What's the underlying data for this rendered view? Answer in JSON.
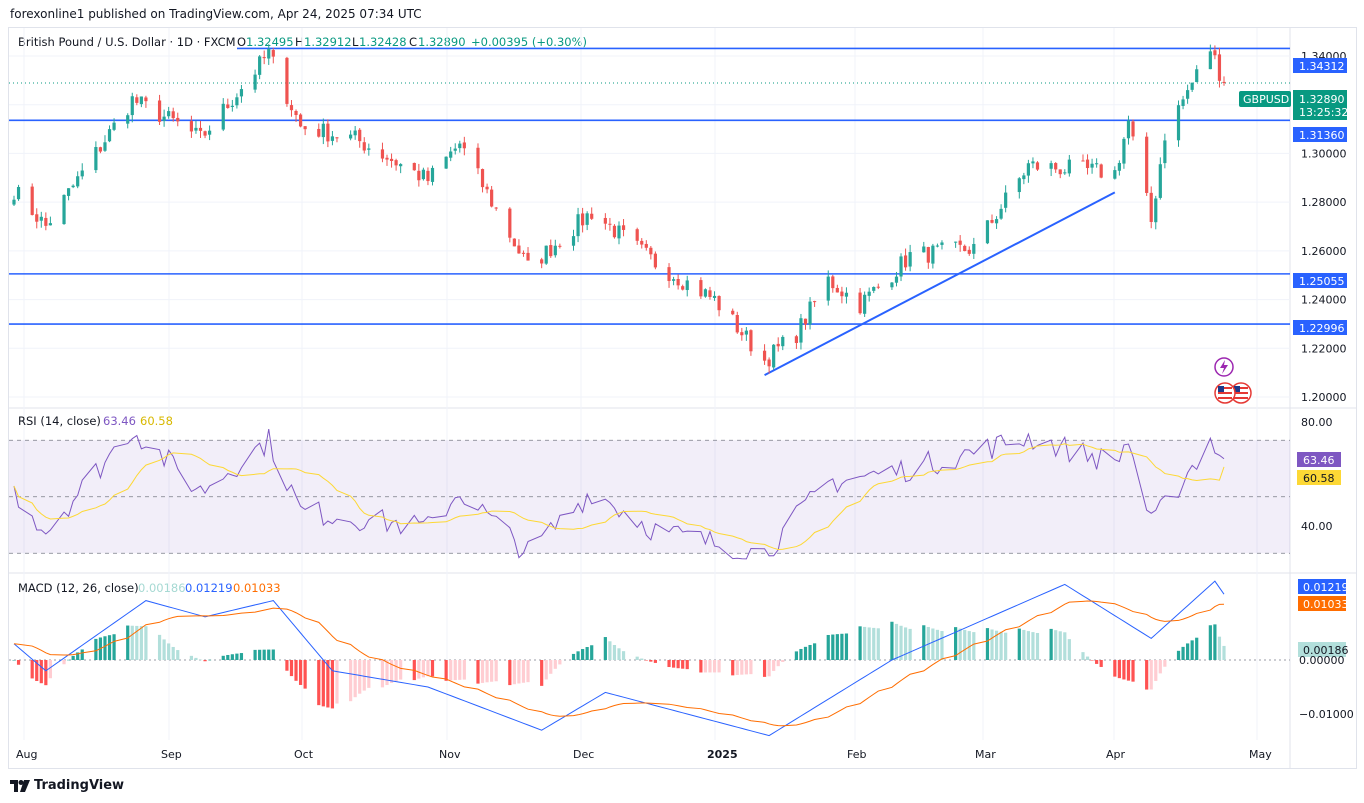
{
  "header": {
    "publish_line": "forexonline1 published on TradingView.com, Apr 24, 2025 07:34 UTC"
  },
  "legend": {
    "symbol": "British Pound / U.S. Dollar · 1D · FXCM",
    "o_label": "O",
    "o_value": "1.32495",
    "h_label": "H",
    "h_value": "1.32912",
    "l_label": "L",
    "l_value": "1.32428",
    "c_label": "C",
    "c_value": "1.32890",
    "change": "+0.00395 (+0.30%)"
  },
  "price_axis": {
    "ticks": [
      "1.34000",
      "1.32000",
      "1.30000",
      "1.28000",
      "1.26000",
      "1.24000",
      "1.22000",
      "1.20000"
    ],
    "symbol_tag": "GBPUSD",
    "last_price": "1.32890",
    "countdown": "13:25:32",
    "levels": [
      "1.34312",
      "1.31360",
      "1.25055",
      "1.22996"
    ]
  },
  "rsi": {
    "label": "RSI (14, close)",
    "value1": "63.46",
    "value2": "60.58",
    "axis_top": "80.00",
    "axis_mid": "40.00"
  },
  "macd": {
    "label": "MACD (12, 26, close)",
    "hist": "0.00186",
    "macd": "0.01219",
    "signal": "0.01033",
    "axis": [
      "0.00000",
      "−0.01000"
    ]
  },
  "time_axis": [
    "Aug",
    "Sep",
    "Oct",
    "Nov",
    "Dec",
    "2025",
    "Feb",
    "Mar",
    "Apr",
    "May"
  ],
  "footer": {
    "brand": "TradingView"
  },
  "colors": {
    "up": "#26a69a",
    "down": "#ef5350",
    "level": "#2962ff",
    "rsi": "#7e57c2",
    "rsi_ma": "#fdd835",
    "macd": "#2962ff",
    "signal": "#ff6d00"
  },
  "chart_data": {
    "type": "candlestick",
    "title": "British Pound / U.S. Dollar · 1D · FXCM",
    "x_range": [
      "2024-08-01",
      "2025-04-24"
    ],
    "y_range": [
      1.195,
      1.347
    ],
    "anchors": [
      {
        "date": "2024-08-01",
        "close": 1.285
      },
      {
        "date": "2024-08-08",
        "close": 1.27
      },
      {
        "date": "2024-08-27",
        "close": 1.322
      },
      {
        "date": "2024-09-06",
        "close": 1.312
      },
      {
        "date": "2024-09-11",
        "close": 1.306
      },
      {
        "date": "2024-09-26",
        "close": 1.341
      },
      {
        "date": "2024-10-03",
        "close": 1.311
      },
      {
        "date": "2024-10-15",
        "close": 1.306
      },
      {
        "date": "2024-10-31",
        "close": 1.289
      },
      {
        "date": "2024-11-07",
        "close": 1.304
      },
      {
        "date": "2024-11-22",
        "close": 1.253
      },
      {
        "date": "2024-12-06",
        "close": 1.276
      },
      {
        "date": "2024-12-20",
        "close": 1.255
      },
      {
        "date": "2025-01-02",
        "close": 1.24
      },
      {
        "date": "2025-01-13",
        "close": 1.215
      },
      {
        "date": "2025-01-20",
        "close": 1.226
      },
      {
        "date": "2025-01-27",
        "close": 1.248
      },
      {
        "date": "2025-02-03",
        "close": 1.238
      },
      {
        "date": "2025-02-14",
        "close": 1.258
      },
      {
        "date": "2025-02-28",
        "close": 1.261
      },
      {
        "date": "2025-03-12",
        "close": 1.295
      },
      {
        "date": "2025-03-31",
        "close": 1.292
      },
      {
        "date": "2025-04-03",
        "close": 1.313
      },
      {
        "date": "2025-04-08",
        "close": 1.272
      },
      {
        "date": "2025-04-11",
        "close": 1.308
      },
      {
        "date": "2025-04-21",
        "close": 1.343
      },
      {
        "date": "2025-04-24",
        "close": 1.3289
      }
    ],
    "horizontal_levels": [
      1.34312,
      1.3136,
      1.25055,
      1.22996
    ],
    "trendline": {
      "from": {
        "date": "2025-01-13",
        "price": 1.209
      },
      "to": {
        "date": "2025-03-31",
        "price": 1.284
      }
    },
    "rsi": {
      "period": 14,
      "last": 63.46,
      "ma_last": 60.58,
      "bands": [
        70,
        50,
        30
      ],
      "anchors": [
        {
          "date": "2024-08-01",
          "v": 52
        },
        {
          "date": "2024-08-08",
          "v": 38
        },
        {
          "date": "2024-08-27",
          "v": 74
        },
        {
          "date": "2024-09-11",
          "v": 52
        },
        {
          "date": "2024-09-26",
          "v": 70
        },
        {
          "date": "2024-10-03",
          "v": 45
        },
        {
          "date": "2024-10-31",
          "v": 39
        },
        {
          "date": "2024-11-07",
          "v": 52
        },
        {
          "date": "2024-11-22",
          "v": 30
        },
        {
          "date": "2024-12-06",
          "v": 52
        },
        {
          "date": "2024-12-20",
          "v": 38
        },
        {
          "date": "2025-01-13",
          "v": 30
        },
        {
          "date": "2025-01-27",
          "v": 55
        },
        {
          "date": "2025-02-14",
          "v": 60
        },
        {
          "date": "2025-03-12",
          "v": 71
        },
        {
          "date": "2025-03-31",
          "v": 62
        },
        {
          "date": "2025-04-03",
          "v": 70
        },
        {
          "date": "2025-04-08",
          "v": 40
        },
        {
          "date": "2025-04-21",
          "v": 70
        },
        {
          "date": "2025-04-24",
          "v": 63.46
        }
      ]
    },
    "macd": {
      "fast": 12,
      "slow": 26,
      "hist_last": 0.00186,
      "macd_last": 0.01219,
      "signal_last": 0.01033,
      "anchors": [
        {
          "date": "2024-08-01",
          "m": 0.003
        },
        {
          "date": "2024-08-08",
          "m": -0.002
        },
        {
          "date": "2024-08-30",
          "m": 0.011
        },
        {
          "date": "2024-09-12",
          "m": 0.008
        },
        {
          "date": "2024-09-27",
          "m": 0.011
        },
        {
          "date": "2024-10-10",
          "m": -0.002
        },
        {
          "date": "2024-10-31",
          "m": -0.005
        },
        {
          "date": "2024-11-25",
          "m": -0.013
        },
        {
          "date": "2024-12-09",
          "m": -0.006
        },
        {
          "date": "2025-01-14",
          "m": -0.014
        },
        {
          "date": "2025-02-10",
          "m": 0.0
        },
        {
          "date": "2025-03-20",
          "m": 0.014
        },
        {
          "date": "2025-04-08",
          "m": 0.004
        },
        {
          "date": "2025-04-22",
          "m": 0.0146
        },
        {
          "date": "2025-04-24",
          "m": 0.01219
        }
      ]
    }
  }
}
